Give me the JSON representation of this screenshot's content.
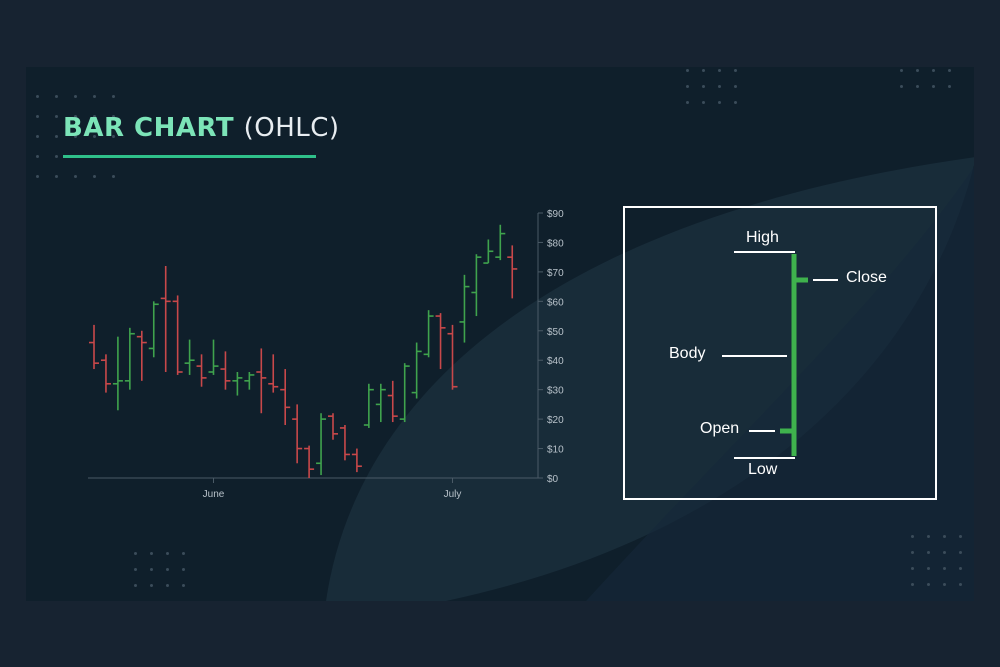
{
  "title": {
    "strong": "BAR CHART",
    "light": "(OHLC)"
  },
  "colors": {
    "up": "#3fa34d",
    "down": "#c8484a",
    "accent": "#7ce4b8",
    "underline": "#2fc08a",
    "legend_bar": "#3fb24d"
  },
  "chart_data": {
    "type": "ohlc",
    "title": "BAR CHART (OHLC)",
    "xlabel": "",
    "ylabel": "",
    "ylim": [
      0,
      90
    ],
    "y_ticks": [
      "$0",
      "$10",
      "$20",
      "$30",
      "$40",
      "$50",
      "$60",
      "$70",
      "$80",
      "$90"
    ],
    "y_axis_position": "right",
    "x_tick_labels": [
      "June",
      "July"
    ],
    "x_tick_bar_index": [
      10,
      30
    ],
    "grid": false,
    "bars": [
      {
        "open": 46,
        "high": 52,
        "low": 37,
        "close": 39
      },
      {
        "open": 40,
        "high": 42,
        "low": 29,
        "close": 32
      },
      {
        "open": 32,
        "high": 48,
        "low": 23,
        "close": 33
      },
      {
        "open": 33,
        "high": 51,
        "low": 30,
        "close": 49
      },
      {
        "open": 48,
        "high": 50,
        "low": 33,
        "close": 46
      },
      {
        "open": 44,
        "high": 60,
        "low": 41,
        "close": 59
      },
      {
        "open": 61,
        "high": 72,
        "low": 36,
        "close": 60
      },
      {
        "open": 60,
        "high": 62,
        "low": 35,
        "close": 36
      },
      {
        "open": 39,
        "high": 47,
        "low": 35,
        "close": 40
      },
      {
        "open": 38,
        "high": 42,
        "low": 31,
        "close": 34
      },
      {
        "open": 36,
        "high": 47,
        "low": 35,
        "close": 38
      },
      {
        "open": 37,
        "high": 43,
        "low": 30,
        "close": 33
      },
      {
        "open": 33,
        "high": 36,
        "low": 28,
        "close": 34
      },
      {
        "open": 33,
        "high": 36,
        "low": 30,
        "close": 35
      },
      {
        "open": 36,
        "high": 44,
        "low": 22,
        "close": 34
      },
      {
        "open": 32,
        "high": 42,
        "low": 29,
        "close": 31
      },
      {
        "open": 30,
        "high": 37,
        "low": 18,
        "close": 24
      },
      {
        "open": 20,
        "high": 25,
        "low": 5,
        "close": 10
      },
      {
        "open": 10,
        "high": 11,
        "low": 0,
        "close": 3
      },
      {
        "open": 5,
        "high": 22,
        "low": 1,
        "close": 20
      },
      {
        "open": 21,
        "high": 22,
        "low": 13,
        "close": 15
      },
      {
        "open": 17,
        "high": 18,
        "low": 6,
        "close": 8
      },
      {
        "open": 8,
        "high": 10,
        "low": 2,
        "close": 4
      },
      {
        "open": 18,
        "high": 32,
        "low": 17,
        "close": 30
      },
      {
        "open": 25,
        "high": 32,
        "low": 19,
        "close": 30
      },
      {
        "open": 28,
        "high": 33,
        "low": 19,
        "close": 21
      },
      {
        "open": 20,
        "high": 39,
        "low": 19,
        "close": 38
      },
      {
        "open": 29,
        "high": 46,
        "low": 27,
        "close": 43
      },
      {
        "open": 42,
        "high": 57,
        "low": 41,
        "close": 55
      },
      {
        "open": 55,
        "high": 56,
        "low": 37,
        "close": 51
      },
      {
        "open": 49,
        "high": 52,
        "low": 30,
        "close": 31
      },
      {
        "open": 53,
        "high": 69,
        "low": 46,
        "close": 65
      },
      {
        "open": 63,
        "high": 76,
        "low": 55,
        "close": 75
      },
      {
        "open": 73,
        "high": 81,
        "low": 73,
        "close": 77
      },
      {
        "open": 75,
        "high": 86,
        "low": 74,
        "close": 83
      },
      {
        "open": 75,
        "high": 79,
        "low": 61,
        "close": 71
      }
    ]
  },
  "legend": {
    "high": "High",
    "close": "Close",
    "body": "Body",
    "open": "Open",
    "low": "Low"
  }
}
